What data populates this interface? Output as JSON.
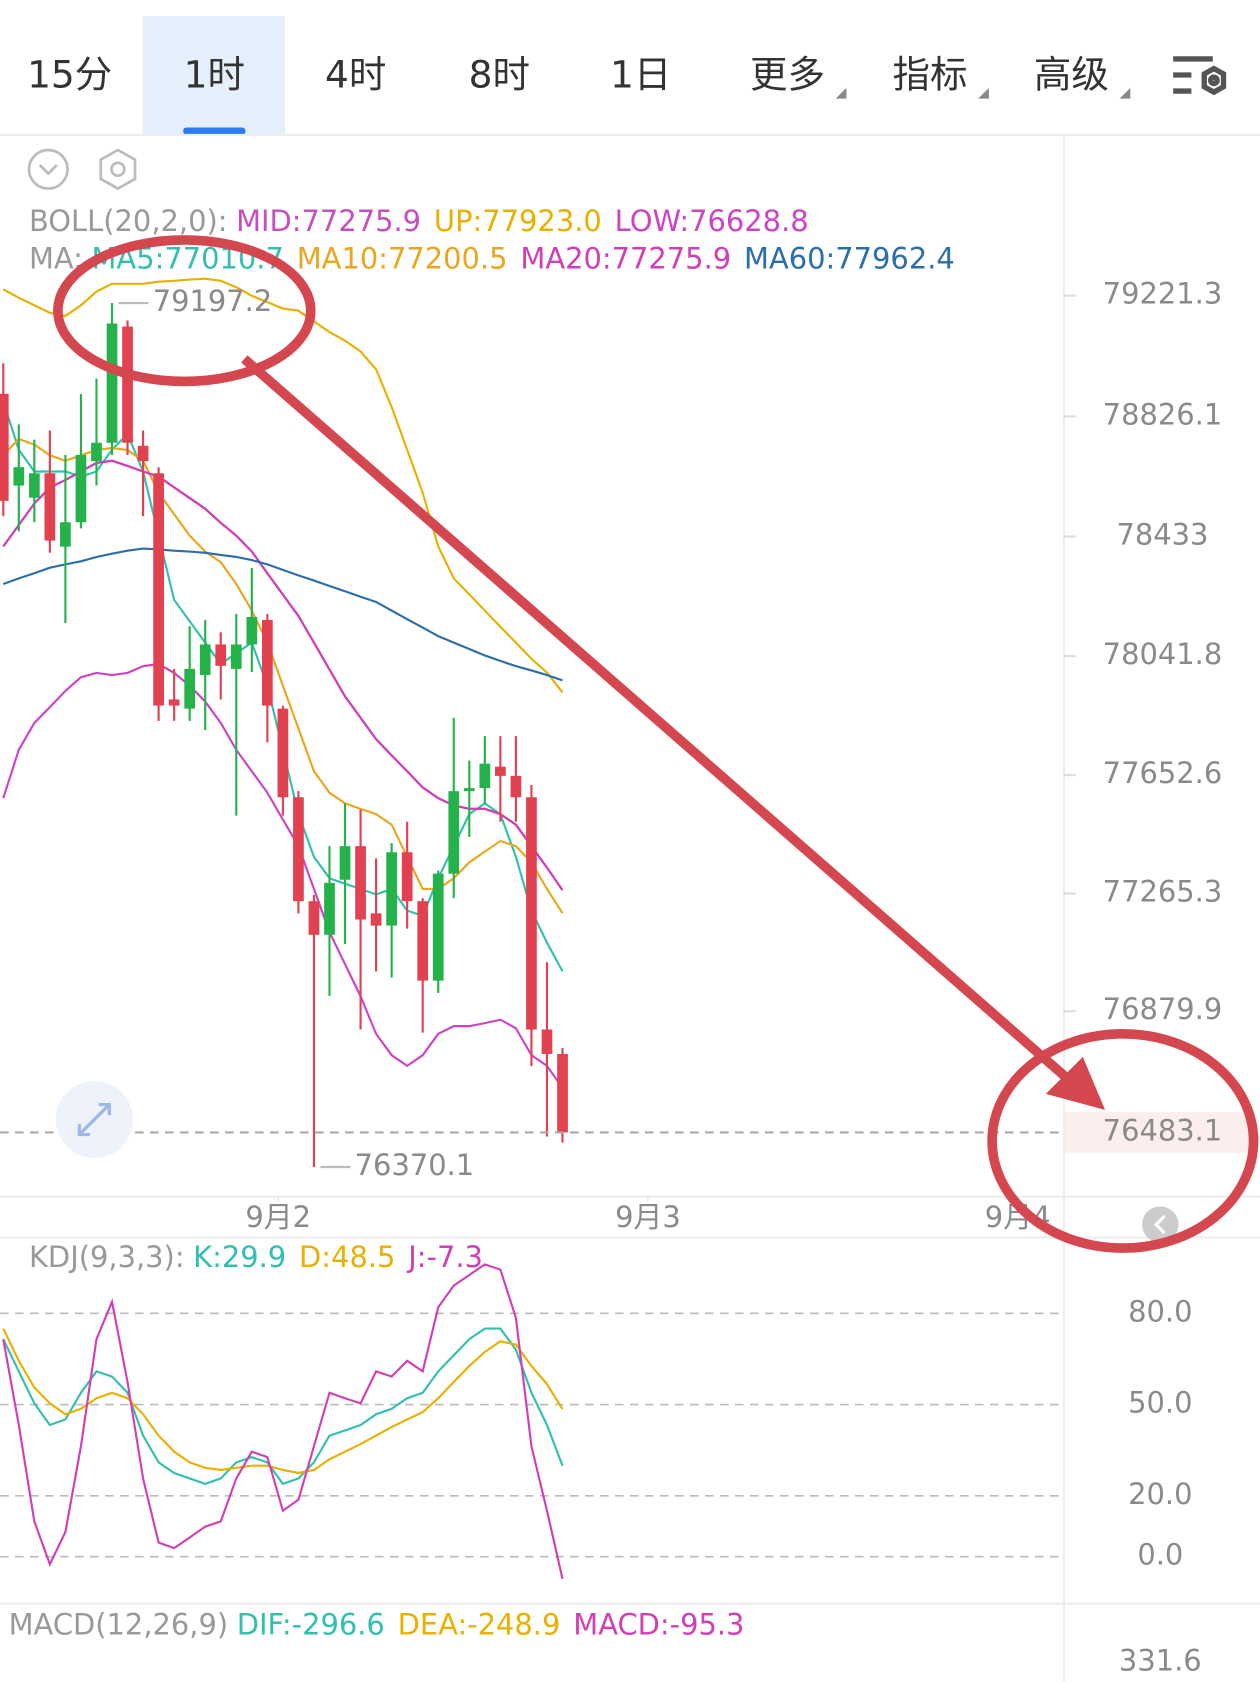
{
  "tabs": [
    "15分",
    "1时",
    "4时",
    "8时",
    "1日",
    "更多",
    "指标",
    "高级"
  ],
  "selected_tab": 1,
  "chart_data": [
    {
      "type": "candlestick",
      "title": "BOLL(20,2,0):",
      "ma_title": "MA:",
      "candles": {
        "open": [
          78900,
          78600,
          78560,
          78640,
          78400,
          78480,
          78680,
          78740,
          79120,
          78730,
          78640,
          77900,
          77870,
          77980,
          78080,
          78000,
          78080,
          78160,
          77870,
          77580,
          77240,
          77130,
          77310,
          77420,
          77200,
          77160,
          77400,
          77240,
          76980,
          77330,
          77600,
          77610,
          77680,
          77650,
          77580,
          76820,
          76740
        ],
        "close": [
          78550,
          78660,
          78640,
          78420,
          78480,
          78700,
          78740,
          79130,
          78740,
          78680,
          77880,
          77880,
          78000,
          78080,
          78010,
          78080,
          78170,
          77880,
          77580,
          77240,
          77130,
          77300,
          77420,
          77180,
          77160,
          77400,
          77240,
          76980,
          77330,
          77600,
          77610,
          77690,
          77650,
          77580,
          76820,
          76740,
          76483.1
        ],
        "high": [
          79000,
          78800,
          78750,
          78780,
          78700,
          78900,
          78950,
          79197.2,
          79140,
          78780,
          78660,
          78000,
          78140,
          78160,
          78120,
          78180,
          78330,
          78180,
          77880,
          77600,
          77260,
          77420,
          77560,
          77540,
          77380,
          77430,
          77500,
          77250,
          77340,
          77840,
          77700,
          77780,
          77780,
          77780,
          77620,
          77040,
          76760
        ],
        "low": [
          78500,
          78450,
          78480,
          78380,
          78150,
          78460,
          78600,
          78700,
          78700,
          78500,
          77830,
          77830,
          77830,
          77800,
          77900,
          77520,
          77990,
          77760,
          77520,
          77200,
          76370.1,
          76930,
          77100,
          76820,
          77010,
          76990,
          77150,
          76810,
          76940,
          77250,
          77450,
          77560,
          77500,
          77500,
          76700,
          76470,
          76450
        ],
        "up_color": "#26b24a",
        "down_color": "#e2414f"
      },
      "boll": [
        {
          "label": "MID:77275.9",
          "color": "#c64fbf",
          "values": [
            78401,
            78471,
            78541,
            78594,
            78618,
            78646,
            78674,
            78681,
            78664,
            78646,
            78629,
            78594,
            78559,
            78524,
            78478,
            78436,
            78384,
            78313,
            78243,
            78173,
            78086,
            77998,
            77910,
            77840,
            77770,
            77717,
            77665,
            77612,
            77577,
            77553,
            77542,
            77542,
            77525,
            77490,
            77420,
            77350,
            77275.9
          ]
        },
        {
          "label": "UP:77923.0",
          "color": "#e8b000",
          "values": [
            79242,
            79214,
            79190,
            79165,
            79155,
            79190,
            79235,
            79260,
            79260,
            79260,
            79267,
            79270,
            79274,
            79277,
            79270,
            79249,
            79221,
            79200,
            79179,
            79172,
            79137,
            79102,
            79074,
            79039,
            78980,
            78857,
            78717,
            78576,
            78401,
            78296,
            78244,
            78191,
            78138,
            78086,
            78033,
            77988,
            77923.0
          ]
        },
        {
          "label": "LOW:76628.8",
          "color": "#cc44c4",
          "values": [
            77577,
            77735,
            77823,
            77875,
            77928,
            77973,
            77987,
            77980,
            77987,
            78009,
            78016,
            77987,
            77945,
            77893,
            77823,
            77735,
            77665,
            77595,
            77507,
            77420,
            77280,
            77139,
            77034,
            76929,
            76806,
            76736,
            76701,
            76736,
            76806,
            76831,
            76831,
            76841,
            76852,
            76824,
            76736,
            76701,
            76628.8
          ]
        }
      ],
      "ma": [
        {
          "label": "MA5:77010.7",
          "color": "#33bfae",
          "values": [
            78874,
            78717,
            78646,
            78646,
            78646,
            78629,
            78646,
            78717,
            78769,
            78646,
            78436,
            78226,
            78156,
            78086,
            78016,
            78051,
            78086,
            77945,
            77735,
            77525,
            77385,
            77315,
            77297,
            77280,
            77262,
            77280,
            77209,
            77192,
            77315,
            77420,
            77525,
            77560,
            77525,
            77385,
            77209,
            77104,
            77010.7
          ]
        },
        {
          "label": "MA10:77200.5",
          "color": "#eaa61e",
          "values": [
            78699,
            78752,
            78734,
            78699,
            78681,
            78699,
            78716,
            78723,
            78716,
            78681,
            78576,
            78506,
            78436,
            78384,
            78349,
            78278,
            78191,
            78086,
            77945,
            77805,
            77665,
            77595,
            77560,
            77542,
            77525,
            77490,
            77385,
            77280,
            77280,
            77315,
            77367,
            77402,
            77437,
            77420,
            77367,
            77280,
            77200.5
          ]
        },
        {
          "label": "MA20:77275.9",
          "color": "#d13fb4",
          "values": [
            78401,
            78471,
            78541,
            78594,
            78618,
            78646,
            78674,
            78681,
            78664,
            78646,
            78629,
            78594,
            78559,
            78524,
            78478,
            78436,
            78384,
            78313,
            78243,
            78173,
            78086,
            77998,
            77910,
            77840,
            77770,
            77717,
            77665,
            77612,
            77577,
            77553,
            77542,
            77542,
            77525,
            77490,
            77420,
            77350,
            77275.9
          ]
        },
        {
          "label": "MA60:77962.4",
          "color": "#2b6ea8",
          "values": [
            78278,
            78296,
            78313,
            78331,
            78342,
            78352,
            78366,
            78377,
            78387,
            78394,
            78391,
            78387,
            78384,
            78380,
            78373,
            78366,
            78356,
            78342,
            78324,
            78306,
            78289,
            78271,
            78254,
            78236,
            78219,
            78191,
            78163,
            78135,
            78107,
            78086,
            78065,
            78044,
            78026,
            78009,
            77995,
            77980,
            77962.4
          ]
        }
      ],
      "ylim": [
        76280,
        79733
      ],
      "yticks": [
        79221.3,
        78826.1,
        78433.0,
        78041.8,
        77652.6,
        77265.3,
        76879.9
      ],
      "xticks": [
        {
          "value": 17.7,
          "label": "9月2"
        },
        {
          "value": 41.5,
          "label": "9月3"
        },
        {
          "value": 65.3,
          "label": "9月4"
        }
      ]
    },
    {
      "type": "line",
      "title": "KDJ(9,3,3):",
      "series": [
        {
          "label": "K:29.9",
          "color": "#33bfae",
          "values": [
            71.5,
            60.9,
            50.4,
            43.3,
            45.1,
            53.9,
            60.9,
            59.2,
            53.9,
            39.8,
            31.0,
            27.5,
            25.7,
            23.9,
            25.7,
            31.0,
            32.7,
            31.0,
            23.9,
            25.7,
            31.0,
            39.8,
            41.5,
            43.3,
            46.8,
            48.6,
            52.1,
            53.9,
            60.9,
            66.2,
            71.5,
            75.0,
            75.0,
            68.0,
            53.9,
            43.3,
            29.9
          ]
        },
        {
          "label": "D:48.5",
          "color": "#eab000",
          "values": [
            75.0,
            64.4,
            55.6,
            50.4,
            46.8,
            48.6,
            52.1,
            53.9,
            52.1,
            46.8,
            39.8,
            34.5,
            31.0,
            29.2,
            28.5,
            29.2,
            29.9,
            29.9,
            28.5,
            27.5,
            28.5,
            32.0,
            34.5,
            37.0,
            39.8,
            42.6,
            45.1,
            47.5,
            52.1,
            57.4,
            62.7,
            67.3,
            70.8,
            69.7,
            62.7,
            56.7,
            48.5
          ]
        },
        {
          "label": "J:-7.3",
          "color": "#d13fb4",
          "values": [
            71.5,
            43.3,
            11.6,
            -2.5,
            8.1,
            36.3,
            71.5,
            83.8,
            57.4,
            25.7,
            4.6,
            2.8,
            6.3,
            9.9,
            11.6,
            25.7,
            34.5,
            32.7,
            15.1,
            18.7,
            36.3,
            53.9,
            52.1,
            50.4,
            60.9,
            59.2,
            64.4,
            60.9,
            82.0,
            89.1,
            92.6,
            96.1,
            94.4,
            78.5,
            36.3,
            15.1,
            -7.3
          ]
        }
      ],
      "ylim": [
        -14.8,
        103.2
      ],
      "yticks": [
        {
          "value": 80,
          "label": "80.0"
        },
        {
          "value": 50,
          "label": "50.0"
        },
        {
          "value": 20,
          "label": "20.0"
        },
        {
          "value": 0,
          "label": "0.0"
        }
      ]
    },
    {
      "type": "macd",
      "title": "MACD(12,26,9)",
      "series": [
        {
          "label": "DIF:-296.6",
          "color": "#33bfae"
        },
        {
          "label": "DEA:-248.9",
          "color": "#eab000"
        },
        {
          "label": "MACD:-95.3",
          "color": "#d13fb4"
        }
      ],
      "yticks": [
        331.6
      ]
    }
  ]
}
